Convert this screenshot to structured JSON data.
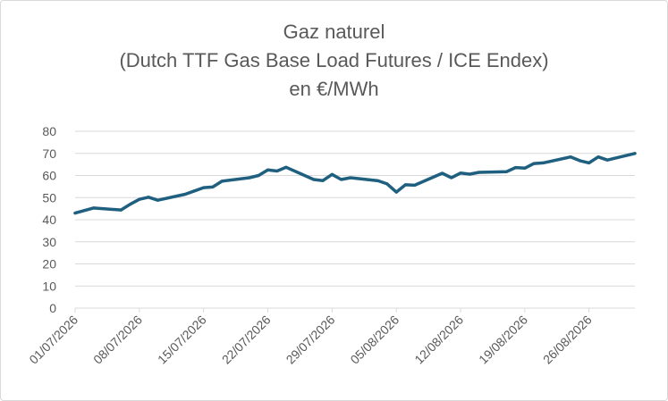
{
  "chart_data": {
    "type": "line",
    "title": "Gaz naturel",
    "subtitle": "(Dutch TTF Gas Base Load Futures / ICE Endex)",
    "unit": "en €/MWh",
    "ylim": [
      0,
      80
    ],
    "yticks": [
      0,
      10,
      20,
      30,
      40,
      50,
      60,
      70,
      80
    ],
    "grid": true,
    "legend": "none",
    "line_color": "#1f5f7f",
    "grid_color": "#d9d9d9",
    "xlim": [
      "01/07/2026",
      "31/08/2026"
    ],
    "xtick_labels": [
      "01/07/2026",
      "08/07/2026",
      "15/07/2026",
      "22/07/2026",
      "29/07/2026",
      "05/08/2026",
      "12/08/2026",
      "19/08/2026",
      "26/08/2026"
    ],
    "series": [
      {
        "x": [
          "01/07/2026",
          "03/07/2026",
          "06/07/2026",
          "07/07/2026",
          "08/07/2026",
          "09/07/2026",
          "10/07/2026",
          "13/07/2026",
          "14/07/2026",
          "15/07/2026",
          "16/07/2026",
          "17/07/2026",
          "20/07/2026",
          "21/07/2026",
          "22/07/2026",
          "23/07/2026",
          "24/07/2026",
          "27/07/2026",
          "28/07/2026",
          "29/07/2026",
          "30/07/2026",
          "31/07/2026",
          "03/08/2026",
          "04/08/2026",
          "05/08/2026",
          "06/08/2026",
          "07/08/2026",
          "10/08/2026",
          "11/08/2026",
          "12/08/2026",
          "13/08/2026",
          "14/08/2026",
          "17/08/2026",
          "18/08/2026",
          "19/08/2026",
          "20/08/2026",
          "21/08/2026",
          "24/08/2026",
          "25/08/2026",
          "26/08/2026",
          "27/08/2026",
          "28/08/2026",
          "31/08/2026"
        ],
        "values": [
          43,
          45.3,
          44.4,
          47,
          49.2,
          50.2,
          48.8,
          51.5,
          53,
          54.5,
          54.8,
          57.4,
          59,
          60,
          62.5,
          62,
          63.7,
          58.2,
          57.7,
          60.5,
          58.2,
          59,
          57.6,
          56.2,
          52.5,
          55.8,
          55.6,
          61,
          59,
          61.1,
          60.6,
          61.4,
          61.7,
          63.6,
          63.3,
          65.4,
          65.7,
          68.4,
          66.7,
          65.7,
          68.4,
          67,
          70
        ]
      }
    ]
  }
}
